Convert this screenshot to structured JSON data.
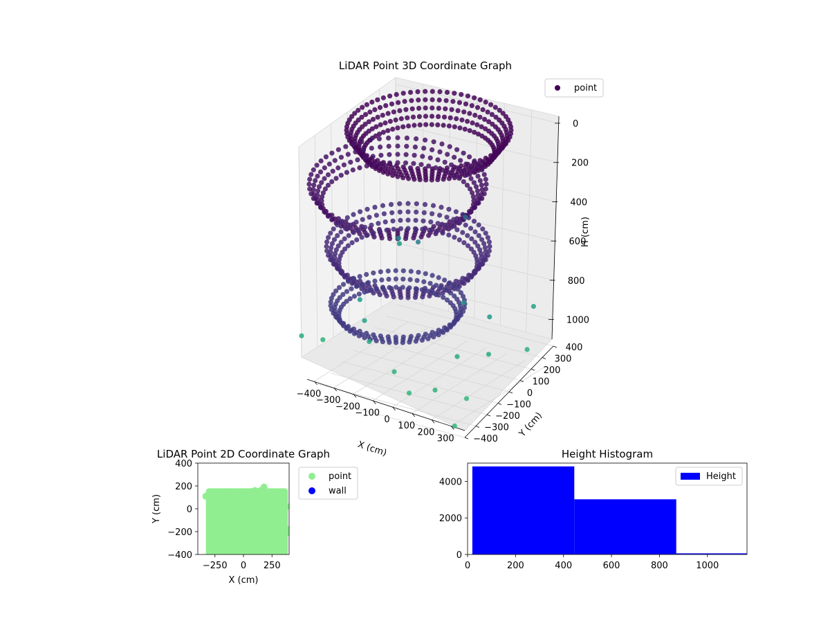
{
  "chart_data": [
    {
      "type": "scatter",
      "projection": "3d",
      "title": "LiDAR Point 3D Coordinate Graph",
      "xlabel": "X (cm)",
      "ylabel": "Y (cm)",
      "zlabel": "H (cm)",
      "xticks": [
        "−400",
        "−300",
        "−200",
        "−100",
        "0",
        "100",
        "200",
        "300"
      ],
      "yticks": [
        "−400",
        "−300",
        "−200",
        "−100",
        "0",
        "100",
        "200",
        "300",
        "400"
      ],
      "zticks": [
        "0",
        "200",
        "400",
        "600",
        "800",
        "1000"
      ],
      "zlim": [
        1100,
        0
      ],
      "zaxis_inverted": true,
      "grid": true,
      "legend": {
        "position": "top-right",
        "entries": [
          {
            "label": "point",
            "color": "#440154"
          }
        ]
      },
      "colormap": "viridis",
      "series": [
        {
          "name": "point",
          "points": [
            [
              -400,
              -400,
              1000
            ],
            [
              -350,
              -300,
              1050
            ],
            [
              -300,
              300,
              900
            ],
            [
              -250,
              200,
              800
            ],
            [
              -200,
              -200,
              950
            ],
            [
              -150,
              -250,
              1000
            ],
            [
              0,
              -300,
              1050
            ],
            [
              100,
              -350,
              1080
            ],
            [
              200,
              -100,
              1000
            ],
            [
              300,
              -200,
              1100
            ],
            [
              330,
              350,
              950
            ],
            [
              350,
              -400,
              1100
            ],
            [
              380,
              200,
              1050
            ],
            [
              250,
              100,
              900
            ],
            [
              150,
              50,
              850
            ],
            [
              -100,
              100,
              700
            ],
            [
              50,
              250,
              600
            ],
            [
              -250,
              -150,
              900
            ],
            [
              200,
              -300,
              1050
            ],
            [
              300,
              0,
              1000
            ]
          ]
        }
      ]
    },
    {
      "type": "scatter",
      "title": "LiDAR Point 2D Coordinate Graph",
      "xlabel": "X (cm)",
      "ylabel": "Y (cm)",
      "xlim": [
        -400,
        400
      ],
      "ylim": [
        -400,
        400
      ],
      "xticks": [
        "−250",
        "0",
        "250"
      ],
      "yticks": [
        "−400",
        "−200",
        "0",
        "200",
        "400"
      ],
      "legend": {
        "position": "outside-right",
        "entries": [
          {
            "label": "point",
            "color": "#90ee90"
          },
          {
            "label": "wall",
            "color": "#0000ff"
          }
        ]
      },
      "series": [
        {
          "name": "point",
          "color": "#90ee90",
          "points": [
            [
              -330,
              110
            ],
            [
              -300,
              20
            ],
            [
              -280,
              -330
            ],
            [
              -270,
              140
            ],
            [
              -250,
              90
            ],
            [
              -240,
              -200
            ],
            [
              -220,
              -380
            ],
            [
              -200,
              130
            ],
            [
              -150,
              150
            ],
            [
              -100,
              140
            ],
            [
              -50,
              140
            ],
            [
              0,
              150
            ],
            [
              50,
              150
            ],
            [
              100,
              160
            ],
            [
              150,
              160
            ],
            [
              180,
              190
            ],
            [
              200,
              150
            ],
            [
              250,
              140
            ],
            [
              300,
              130
            ],
            [
              350,
              100
            ],
            [
              380,
              20
            ],
            [
              370,
              -170
            ],
            [
              400,
              -210
            ],
            [
              340,
              -380
            ],
            [
              -100,
              -300
            ],
            [
              0,
              -200
            ],
            [
              100,
              -100
            ],
            [
              200,
              -250
            ],
            [
              -200,
              -50
            ],
            [
              150,
              0
            ]
          ]
        },
        {
          "name": "wall",
          "color": "#0000ff",
          "points": []
        }
      ]
    },
    {
      "type": "bar",
      "subtype": "histogram",
      "title": "Height Histogram",
      "xlim": [
        0,
        1165
      ],
      "ylim": [
        0,
        5000
      ],
      "xticks": [
        "0",
        "200",
        "400",
        "600",
        "800",
        "1000"
      ],
      "yticks": [
        "0",
        "2000",
        "4000"
      ],
      "legend": {
        "position": "top-right",
        "entries": [
          {
            "label": "Height",
            "color": "#0000ff"
          }
        ]
      },
      "series": [
        {
          "name": "Height",
          "color": "#0000ff",
          "bins": [
            [
              20,
              445,
              4820
            ],
            [
              445,
              870,
              3020
            ],
            [
              870,
              1165,
              60
            ]
          ]
        }
      ]
    }
  ]
}
